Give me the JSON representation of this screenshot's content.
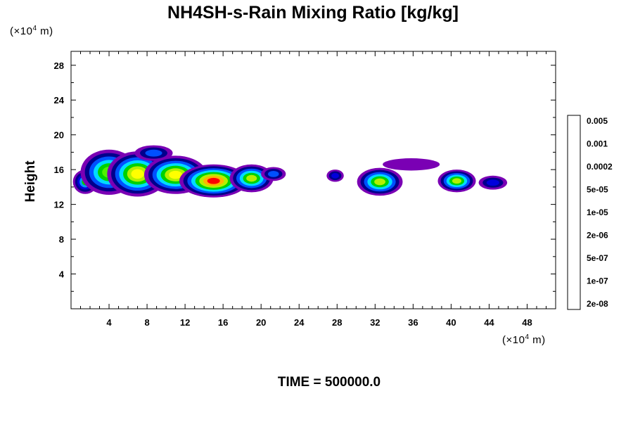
{
  "chart_data": {
    "type": "heatmap",
    "title": "NH4SH-s-Rain Mixing Ratio [kg/kg]",
    "ylabel": "Height",
    "x_unit": {
      "pre": "(×10",
      "exp": "4",
      "post": " m)"
    },
    "y_unit": {
      "pre": "(×10",
      "exp": "4",
      "post": " m)"
    },
    "xlim": [
      0,
      51
    ],
    "ylim": [
      0,
      29.6
    ],
    "x_ticks": [
      4,
      8,
      12,
      16,
      20,
      24,
      28,
      32,
      36,
      40,
      44,
      48
    ],
    "y_ticks": [
      4,
      8,
      12,
      16,
      20,
      24,
      28
    ],
    "time_label": "TIME = 500000.0",
    "colorbar": {
      "colors": [
        "#7a00b4",
        "#00008c",
        "#0000dc",
        "#0050ff",
        "#0096ff",
        "#00dcff",
        "#00ffc8",
        "#00e678",
        "#00d200",
        "#50f000",
        "#b4f000",
        "#ffff00",
        "#ffb400",
        "#ff6400",
        "#ff0000",
        "#ff5050",
        "#ffa0a0"
      ],
      "labels": [
        "2e-08",
        "1e-07",
        "5e-07",
        "2e-06",
        "1e-05",
        "5e-05",
        "0.0002",
        "0.001",
        "0.005"
      ]
    },
    "blobs": [
      {
        "x": 1.5,
        "y": 14.6,
        "rx": 1.3,
        "ry": 1.4,
        "levels": [
          0,
          1,
          2,
          4,
          8
        ]
      },
      {
        "x": 4.0,
        "y": 15.7,
        "rx": 3.0,
        "ry": 2.6,
        "levels": [
          0,
          1,
          3,
          5,
          8,
          9
        ]
      },
      {
        "x": 7.0,
        "y": 15.5,
        "rx": 3.2,
        "ry": 2.6,
        "levels": [
          0,
          1,
          3,
          5,
          8,
          10,
          11
        ]
      },
      {
        "x": 8.7,
        "y": 17.9,
        "rx": 2.0,
        "ry": 0.9,
        "levels": [
          0,
          1,
          3
        ]
      },
      {
        "x": 11.0,
        "y": 15.4,
        "rx": 3.3,
        "ry": 2.2,
        "levels": [
          0,
          1,
          3,
          5,
          8,
          10,
          11
        ]
      },
      {
        "x": 15.0,
        "y": 14.7,
        "rx": 3.6,
        "ry": 1.9,
        "levels": [
          0,
          1,
          3,
          5,
          8,
          10,
          12,
          14
        ]
      },
      {
        "x": 19.0,
        "y": 15.0,
        "rx": 2.3,
        "ry": 1.6,
        "levels": [
          0,
          1,
          3,
          5,
          8,
          10
        ]
      },
      {
        "x": 21.3,
        "y": 15.5,
        "rx": 1.3,
        "ry": 0.8,
        "levels": [
          0,
          1,
          3
        ]
      },
      {
        "x": 27.8,
        "y": 15.3,
        "rx": 0.9,
        "ry": 0.7,
        "levels": [
          0,
          1,
          2
        ]
      },
      {
        "x": 32.5,
        "y": 14.6,
        "rx": 2.4,
        "ry": 1.6,
        "levels": [
          0,
          1,
          3,
          5,
          8,
          10
        ]
      },
      {
        "x": 35.8,
        "y": 16.6,
        "rx": 3.0,
        "ry": 0.7,
        "levels": [
          0
        ]
      },
      {
        "x": 40.6,
        "y": 14.7,
        "rx": 2.0,
        "ry": 1.3,
        "levels": [
          0,
          1,
          3,
          5,
          8,
          10
        ]
      },
      {
        "x": 44.4,
        "y": 14.5,
        "rx": 1.5,
        "ry": 0.8,
        "levels": [
          0,
          1,
          2
        ]
      }
    ]
  }
}
